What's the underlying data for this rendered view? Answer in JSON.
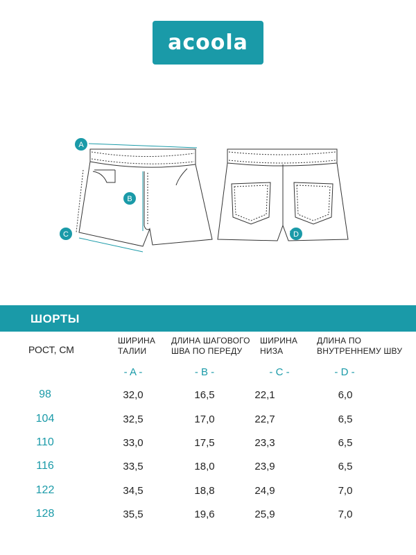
{
  "colors": {
    "accent": "#1a9aa8",
    "text": "#222222",
    "line": "#333333"
  },
  "logo": {
    "text": "acoola"
  },
  "diagram": {
    "marks": {
      "a": "A",
      "b": "B",
      "c": "C",
      "d": "D"
    }
  },
  "section": {
    "title": "ШОРТЫ"
  },
  "table": {
    "row_header": "РОСТ, СМ",
    "columns": [
      {
        "label_line1": "ШИРИНА",
        "label_line2": "ТАЛИИ",
        "mark": "- A -"
      },
      {
        "label_line1": "ДЛИНА ШАГОВОГО",
        "label_line2": "ШВА ПО ПЕРЕДУ",
        "mark": "- B -"
      },
      {
        "label_line1": "ШИРИНА",
        "label_line2": "НИЗА",
        "mark": "- C -"
      },
      {
        "label_line1": "ДЛИНА ПО",
        "label_line2": "ВНУТРЕННЕМУ ШВУ",
        "mark": "- D -"
      }
    ],
    "rows": [
      {
        "height": "98",
        "values": [
          "32,0",
          "16,5",
          "22,1",
          "6,0"
        ]
      },
      {
        "height": "104",
        "values": [
          "32,5",
          "17,0",
          "22,7",
          "6,5"
        ]
      },
      {
        "height": "110",
        "values": [
          "33,0",
          "17,5",
          "23,3",
          "6,5"
        ]
      },
      {
        "height": "116",
        "values": [
          "33,5",
          "18,0",
          "23,9",
          "6,5"
        ]
      },
      {
        "height": "122",
        "values": [
          "34,5",
          "18,8",
          "24,9",
          "7,0"
        ]
      },
      {
        "height": "128",
        "values": [
          "35,5",
          "19,6",
          "25,9",
          "7,0"
        ]
      }
    ]
  }
}
